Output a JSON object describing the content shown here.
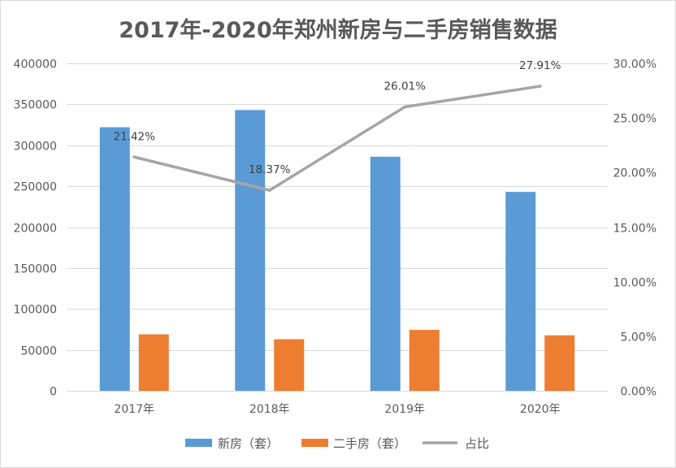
{
  "chart_data": {
    "type": "bar",
    "title": "2017年-2020年郑州新房与二手房销售数据",
    "categories": [
      "2017年",
      "2018年",
      "2019年",
      "2020年"
    ],
    "series": [
      {
        "name": "新房（套）",
        "type": "bar",
        "axis": "left",
        "color": "#5B9BD5",
        "values": [
          322000,
          343000,
          286000,
          243000
        ]
      },
      {
        "name": "二手房（套）",
        "type": "bar",
        "axis": "left",
        "color": "#ED7D31",
        "values": [
          69000,
          63000,
          74400,
          67800
        ]
      },
      {
        "name": "占比",
        "type": "line",
        "axis": "right",
        "color": "#A5A5A5",
        "values": [
          21.42,
          18.37,
          26.01,
          27.91
        ],
        "data_labels": [
          "21.42%",
          "18.37%",
          "26.01%",
          "27.91%"
        ]
      }
    ],
    "y_left": {
      "ylim": [
        0,
        400000
      ],
      "ticks": [
        "0",
        "50000",
        "100000",
        "150000",
        "200000",
        "250000",
        "300000",
        "350000",
        "400000"
      ]
    },
    "y_right": {
      "ylim": [
        0,
        30
      ],
      "ticks": [
        "0.00%",
        "5.00%",
        "10.00%",
        "15.00%",
        "20.00%",
        "25.00%",
        "30.00%"
      ]
    },
    "grid": true,
    "legend_position": "bottom"
  },
  "colors": {
    "grid": "#D9D9D9",
    "border": "#D9D9D9",
    "axis_text": "#595959",
    "title": "#595959",
    "legend_text": "#595959",
    "data_label": "#404040",
    "background": "#FFFFFF"
  }
}
